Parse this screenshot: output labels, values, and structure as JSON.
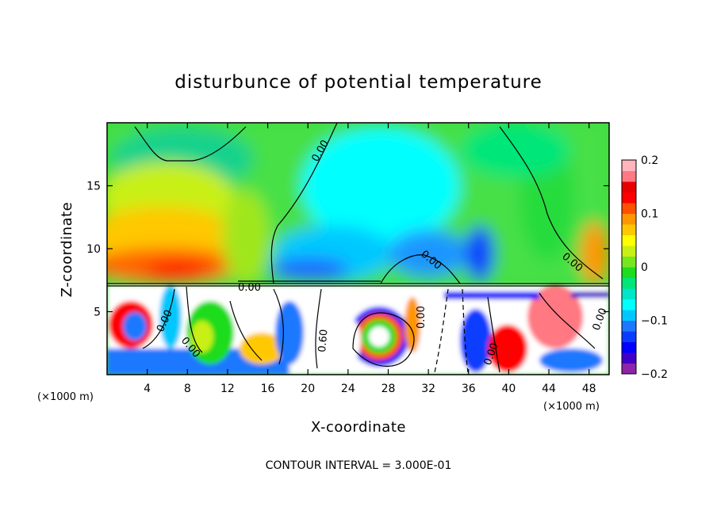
{
  "chart_data": {
    "type": "heatmap",
    "title": "disturbunce of potential temperature",
    "xlabel": "X-coordinate",
    "ylabel": "Z-coordinate",
    "x_unit": "(×1000 m)",
    "y_unit": "(×1000 m)",
    "xlim": [
      0,
      50
    ],
    "ylim": [
      0,
      20
    ],
    "x_ticks": [
      4,
      8,
      12,
      16,
      20,
      24,
      28,
      32,
      36,
      40,
      44,
      48
    ],
    "y_ticks": [
      5,
      10,
      15
    ],
    "colorbar": {
      "range": [
        -0.2,
        0.2
      ],
      "tick_labels": [
        "0.2",
        "0.1",
        "0",
        "−0.1",
        "−0.2"
      ],
      "tick_values": [
        0.2,
        0.1,
        0,
        -0.1,
        -0.2
      ],
      "colors": [
        "#8e24aa",
        "#3f00c8",
        "#0000ff",
        "#0a3cff",
        "#1e78ff",
        "#00c8ff",
        "#00ffff",
        "#00e6c8",
        "#00e678",
        "#1edc1e",
        "#78e61e",
        "#c8f014",
        "#ffff00",
        "#ffc800",
        "#ff9600",
        "#ff5000",
        "#ff0000",
        "#e60000",
        "#ff7882",
        "#ffb4be"
      ]
    },
    "contour_labels": [
      "0.00",
      "0.00",
      "0.00",
      "0.00",
      "0.60",
      "0.00",
      "0.00",
      "0.00",
      "0.00",
      "0.00"
    ],
    "contour_interval": "CONTOUR INTERVAL = 3.000E-01"
  }
}
